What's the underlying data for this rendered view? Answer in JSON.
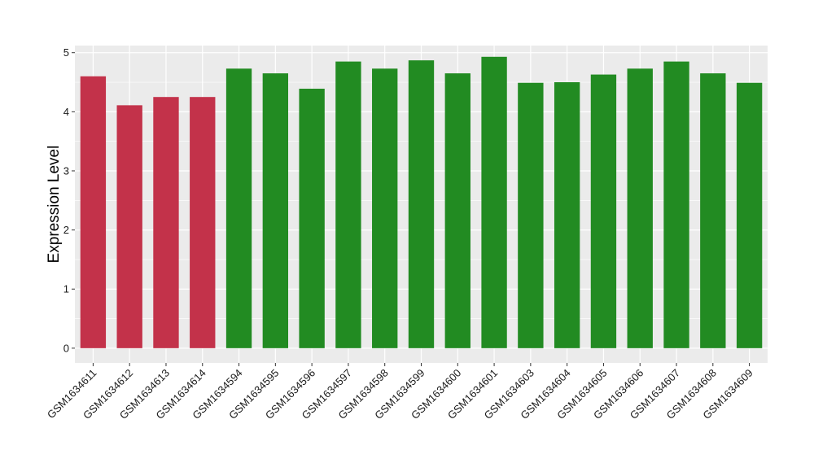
{
  "chart_data": {
    "type": "bar",
    "title": "",
    "xlabel": "",
    "ylabel": "Expression Level",
    "ylim": [
      -0.25,
      5.12
    ],
    "yticks": [
      0,
      1,
      2,
      3,
      4,
      5
    ],
    "grid": true,
    "legend": "none",
    "categories": [
      "GSM1634611",
      "GSM1634612",
      "GSM1634613",
      "GSM1634614",
      "GSM1634594",
      "GSM1634595",
      "GSM1634596",
      "GSM1634597",
      "GSM1634598",
      "GSM1634599",
      "GSM1634600",
      "GSM1634601",
      "GSM1634603",
      "GSM1634604",
      "GSM1634605",
      "GSM1634606",
      "GSM1634607",
      "GSM1634608",
      "GSM1634609"
    ],
    "values": [
      4.6,
      4.11,
      4.25,
      4.25,
      4.73,
      4.65,
      4.39,
      4.85,
      4.73,
      4.87,
      4.65,
      4.93,
      4.49,
      4.5,
      4.63,
      4.73,
      4.85,
      4.65,
      4.49
    ],
    "bar_colors": [
      "#c3324a",
      "#c3324a",
      "#c3324a",
      "#c3324a",
      "#228b22",
      "#228b22",
      "#228b22",
      "#228b22",
      "#228b22",
      "#228b22",
      "#228b22",
      "#228b22",
      "#228b22",
      "#228b22",
      "#228b22",
      "#228b22",
      "#228b22",
      "#228b22",
      "#228b22"
    ],
    "panel_background": "#ebebeb",
    "grid_color": "#ffffff"
  }
}
